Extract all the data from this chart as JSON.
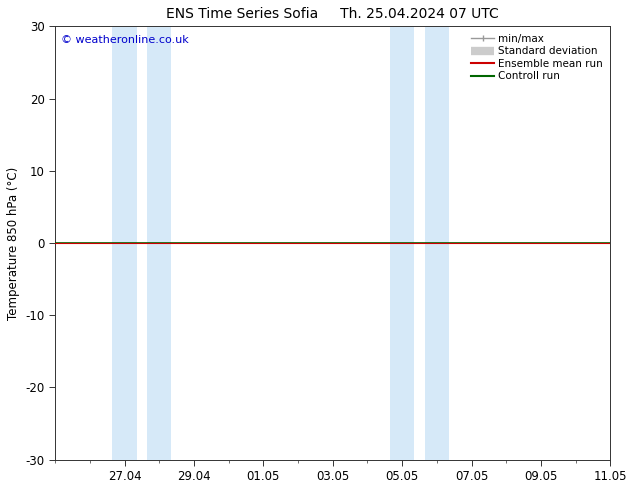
{
  "title_left": "ENS Time Series Sofia",
  "title_right": "Th. 25.04.2024 07 UTC",
  "ylabel": "Temperature 850 hPa (°C)",
  "copyright_text": "© weatheronline.co.uk",
  "ylim": [
    -30,
    30
  ],
  "yticks": [
    -30,
    -20,
    -10,
    0,
    10,
    20,
    30
  ],
  "xtick_labels": [
    "27.04",
    "29.04",
    "01.05",
    "03.05",
    "05.05",
    "07.05",
    "09.05",
    "11.05"
  ],
  "bg_color": "#ffffff",
  "plot_bg_color": "#ffffff",
  "shaded_color": "#d6e9f8",
  "zero_line_color": "#1a5c00",
  "ensemble_mean_color": "#cc0000",
  "control_run_color": "#006600",
  "title_fontsize": 10,
  "axis_fontsize": 8.5,
  "copyright_fontsize": 8,
  "copyright_color": "#0000cc"
}
